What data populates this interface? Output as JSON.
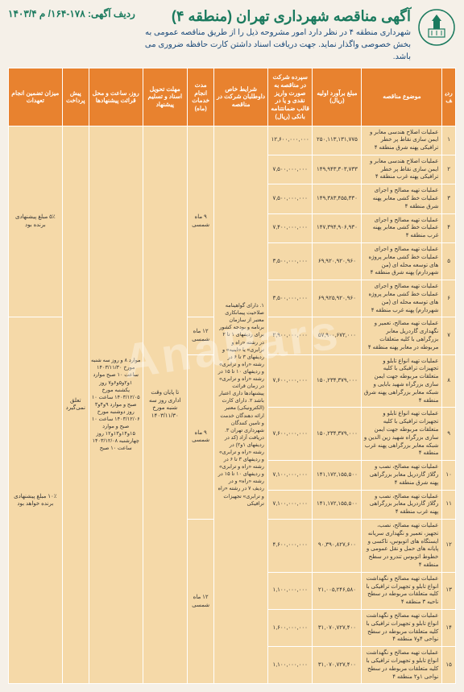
{
  "header": {
    "title": "آگهی مناقصه شهرداری تهران (منطقه ۴)",
    "subtitle": "شهرداری منطقه ۴ در نظر دارد امور مشروحه ذیل را از طریق مناقصه عمومی به بخش خصوصی واگذار نماید. جهت دریافت اسناد داشتن کارت حافظه ضروری می باشد.",
    "ref": "ردیف آگهی: ۱۷۸-۱۶۴/ م ۱۴۰۳/۴"
  },
  "columns": {
    "n": "ردیف",
    "subject": "موضوع مناقصه",
    "estimate": "مبلغ برآورد اولیه (ریال)",
    "deposit": "سپرده شرکت در مناقصه به صورت واریز نقدی و یا در قالب ضمانتنامه بانکی (ریال)",
    "conditions": "شرایط خاص داوطلبان شرکت در مناقصه",
    "duration": "مدت انجام خدمات (ماه)",
    "deadline": "مهلت تحویل اسناد و تسلیم پیشنهاد",
    "when": "روز، ساعت و محل قرائت پیشنهادها",
    "advance": "پیش پرداخت",
    "guarantee": "میزان تضمین انجام تعهدات"
  },
  "rows": [
    {
      "n": "۱",
      "subject": "عملیات اصلاح هندسی معابر و ایمن سازی نقاط پر خطر ترافیکی پهنه شرق منطقه ۴",
      "est": "۲۵۰,۱۱۳,۱۳۱,۷۷۵",
      "dep": "۱۲,۶۰۰,۰۰۰,۰۰۰"
    },
    {
      "n": "۲",
      "subject": "عملیات اصلاح هندسی معابر و ایمن سازی نقاط پر خطر ترافیکی پهنه غرب منطقه ۴",
      "est": "۱۴۹,۹۴۳,۳۰۳,۷۳۳",
      "dep": "۷,۵۰۰,۰۰۰,۰۰۰"
    },
    {
      "n": "۳",
      "subject": "عملیات تهیه مصالح و اجرای عملیات خط کشی معابر پهنه شرق منطقه ۴",
      "est": "۱۴۹,۳۸۳,۴۵۵,۳۳۰",
      "dep": "۷,۵۰۰,۰۰۰,۰۰۰"
    },
    {
      "n": "۴",
      "subject": "عملیات تهیه مصالح و اجرای عملیات خط کشی معابر پهنه غرب منطقه ۴",
      "est": "۱۴۷,۳۹۴,۹۰۶,۹۳۰",
      "dep": "۷,۴۰۰,۰۰۰,۰۰۰"
    },
    {
      "n": "۵",
      "subject": "عملیات تهیه مصالح و اجرای عملیات خط کشی معابر پروژه های توسعه محله ای (من شهردارم) پهنه شرق منطقه ۴",
      "est": "۶۹,۹۲۰,۹۲۰,۹۶۰",
      "dep": "۳,۵۰۰,۰۰۰,۰۰۰"
    },
    {
      "n": "۶",
      "subject": "عملیات تهیه مصالح و اجرای عملیات خط کشی معابر پروژه های توسعه محله ای (من شهردارم) پهنه غرب منطقه ۴",
      "est": "۶۹,۹۲۵,۹۲۰,۹۶۰",
      "dep": "۳,۵۰۰,۰۰۰,۰۰۰"
    },
    {
      "n": "۷",
      "subject": "عملیات تهیه مصالح، تعمیر و نگهداری گاردریل معابر بزرگراهی با کلیه متعلقات مربوطه در معابر پهنه منطقه ۴",
      "est": "۵۷,۹۰۰,۶۷۲,۰۰۰",
      "dep": "۲,۹۰۰,۰۰۰,۰۰۰"
    },
    {
      "n": "۸",
      "subject": "عملیات تهیه انواع تابلو و تجهیزات ترافیکی با کلیه متعلقات مربوطه جهت ایمن سازی بزرگراه شهید بابایی و شبکه معابر بزرگراهی پهنه شرق منطقه ۴",
      "est": "۱۵۰,۲۳۴,۳۷۹,۰۰۰",
      "dep": "۷,۶۰۰,۰۰۰,۰۰۰"
    },
    {
      "n": "۹",
      "subject": "عملیات تهیه انواع تابلو و تجهیزات ترافیکی با کلیه متعلقات مربوطه جهت ایمن سازی بزرگراه شهید زین الدین و شبکه معابر بزرگراهی پهنه غرب منطقه ۴",
      "est": "۱۵۰,۲۳۴,۳۷۹,۰۰۰",
      "dep": "۷,۶۰۰,۰۰۰,۰۰۰"
    },
    {
      "n": "۱۰",
      "subject": "عملیات تهیه مصالح، نصب و رگلاژ گاردریل معابر بزرگراهی پهنه شرق منطقه ۴",
      "est": "۱۴۱,۱۷۲,۱۵۵,۵۰۰",
      "dep": "۷,۱۰۰,۰۰۰,۰۰۰"
    },
    {
      "n": "۱۱",
      "subject": "عملیات تهیه مصالح، نصب و رگلاژ گاردریل معابر بزرگراهی پهنه غرب منطقه ۴",
      "est": "۱۴۱,۱۷۲,۱۵۵,۵۰۰",
      "dep": "۷,۱۰۰,۰۰۰,۰۰۰"
    },
    {
      "n": "۱۲",
      "subject": "عملیات تهیه مصالح، نصب، تجهیز، تعمیر و نگهداری سریانه ایستگاه های اتوبوس، تاکسی و پایانه های حمل و نقل عمومی و خطوط اتوبوس تندرو در سطح منطقه ۴",
      "est": "۹۰,۳۹۰,۸۲۷,۶۰۰",
      "dep": "۴,۶۰۰,۰۰۰,۰۰۰"
    },
    {
      "n": "۱۳",
      "subject": "عملیات تهیه مصالح و نگهداشت انواع تابلو و تجهیزات ترافیکی با کلیه متعلقات مربوطه در سطح ناحیه ۳ منطقه ۴",
      "est": "۲۱,۰۰۵,۲۴۶,۵۸۰",
      "dep": "۱,۱۰۰,۰۰۰,۰۰۰"
    },
    {
      "n": "۱۴",
      "subject": "عملیات تهیه مصالح و نگهداشت انواع تابلو و تجهیزات ترافیکی با کلیه متعلقات مربوطه در سطح نواحی ۴و۷ منطقه ۴",
      "est": "۳۱,۰۷۰,۷۲۷,۴۰۰",
      "dep": "۱,۶۰۰,۰۰۰,۰۰۰"
    },
    {
      "n": "۱۵",
      "subject": "عملیات تهیه مصالح و نگهداشت انواع تابلو و تجهیزات ترافیکی با کلیه متعلقات مربوطه در سطح نواحی ۱و۲ منطقه ۴",
      "est": "۳۱,۰۷۰,۷۲۷,۴۰۰",
      "dep": "۱,۱۰۰,۰۰۰,۰۰۰"
    }
  ],
  "merged": {
    "conditions": "۱. دارای گواهینامه صلاحیت پیمانکاری معتبر از سازمان برنامه و بودجه کشور برای ردیفهای ۱ تا ۲ در رشته «راه و ترابری» یا «ابنیه» و ردیفهای ۳ تا ۶ در رشته «راه و ترابری» و ردیفهای ۱۰ تا ۱۵ در رشته «راه و ترابری» در زمان قرائت پیشنهادها داری اعتبار باشد ۲. دارای کارت (الکترونیکی) معتبر ارائه دهندگان خدمت و تامین کنندگان شهرداری تهران ۳. دریافت آزاد (کد در ردیفهای ۱و۲) در رشته «راه و ترابری» و ردیفهای ۳ تا ۶ در رشته «راه و ترابری» و ردیفهای ۱۰ تا ۱۵ در رشته «راه» و در ردیف ۷ در رشته «راه و ترابری» تجهیزات ترافیکی",
    "dur_a": "۹ ماه شمسی",
    "dur_b": "۱۲ ماه شمسی",
    "dur_c": "۹ ماه شمسی",
    "dur_d": "۱۲ ماه شمسی",
    "deadline": "تا پایان وقت اداری روز سه شنبه مورخ ۱۴۰۳/۱۱/۳۰",
    "when": "موارد ۸ و روز سه شنبه مورخ ۱۴۰۳/۱۱/۳۰ ساعت ۱۰ صبح موارد ۱و۲و۵و۶و۷ روز یکشنبه مورخ ۱۴۰۳/۱۲/۰۵ ساعت ۱۰ صبح و موارد ۹و۴و۳ روز دوشنبه مورخ ۱۴۰۳/۱۲/۰۶ ساعت ۱۰ صبح و موارد ۱۵و۱۴و۱۳و۱۲ روز چهارشنبه ۱۴۰۳/۱۲/۰۸ ساعت ۱۰ صبح",
    "advance": "تعلق نمی‌گیرد",
    "guar_a": "۵٪ مبلغ پیشنهادی برنده بود",
    "guar_b": "۱۰٪ مبلغ پیشنهادی برنده خواهد بود"
  },
  "watermark": "AnaPars"
}
